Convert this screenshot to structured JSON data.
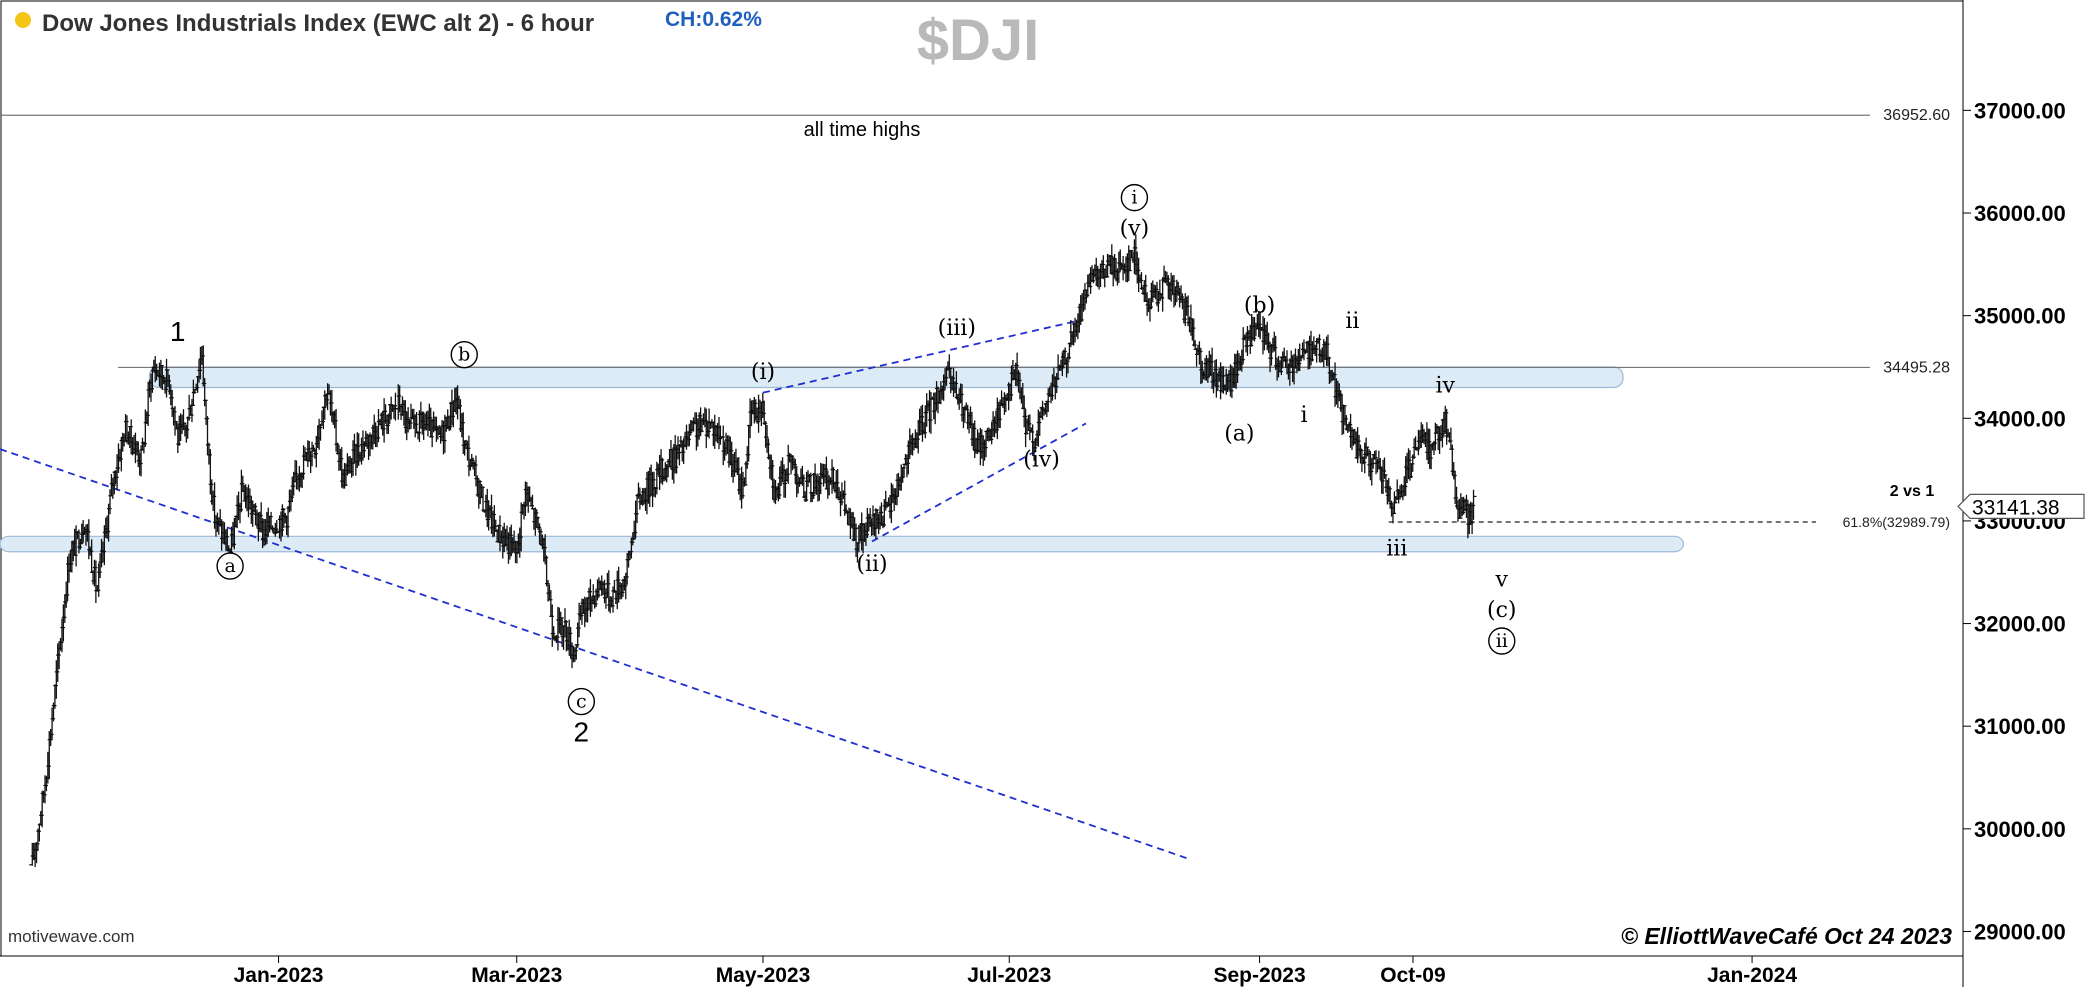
{
  "header": {
    "title": "Dow Jones Industrials Index (EWC alt 2) - 6 hour",
    "change": "CH:0.62%",
    "symbol": "$DJI",
    "dot_color": "#f5c518",
    "change_color": "#1f5fbf"
  },
  "footer": {
    "source": "motivewave.com",
    "copyright": "© ElliottWaveCafé Oct 24 2023"
  },
  "chart_data": {
    "type": "ohlc",
    "x_axis_labels": [
      "Jan-2023",
      "Mar-2023",
      "May-2023",
      "Jul-2023",
      "Sep-2023",
      "Oct-09",
      "Jan-2024"
    ],
    "y_ticks": [
      29000,
      30000,
      31000,
      32000,
      33000,
      34000,
      35000,
      36000,
      37000
    ],
    "y_tick_labels": [
      "29000.00",
      "30000.00",
      "31000.00",
      "32000.00",
      "33000.00",
      "34000.00",
      "35000.00",
      "36000.00",
      "37000.00"
    ],
    "ylim": [
      28800,
      37900
    ],
    "last_price": 33141.38,
    "last_price_label": "33141.38",
    "price_path": [
      [
        "2022-11-01",
        29650
      ],
      [
        "2022-11-04",
        30400
      ],
      [
        "2022-11-07",
        31500
      ],
      [
        "2022-11-10",
        32600
      ],
      [
        "2022-11-14",
        33000
      ],
      [
        "2022-11-17",
        32300
      ],
      [
        "2022-11-21",
        33400
      ],
      [
        "2022-11-24",
        33900
      ],
      [
        "2022-11-28",
        33600
      ],
      [
        "2022-11-30",
        34300
      ],
      [
        "2022-12-01",
        34500
      ],
      [
        "2022-12-05",
        34350
      ],
      [
        "2022-12-07",
        33800
      ],
      [
        "2022-12-09",
        33900
      ],
      [
        "2022-12-13",
        34650
      ],
      [
        "2022-12-14",
        33950
      ],
      [
        "2022-12-16",
        33050
      ],
      [
        "2022-12-20",
        32700
      ],
      [
        "2022-12-23",
        33300
      ],
      [
        "2022-12-28",
        32900
      ],
      [
        "2023-01-03",
        33050
      ],
      [
        "2023-01-06",
        33500
      ],
      [
        "2023-01-10",
        33750
      ],
      [
        "2023-01-13",
        34300
      ],
      [
        "2023-01-17",
        33400
      ],
      [
        "2023-01-20",
        33650
      ],
      [
        "2023-01-25",
        33900
      ],
      [
        "2023-01-31",
        34150
      ],
      [
        "2023-02-02",
        33900
      ],
      [
        "2023-02-06",
        33950
      ],
      [
        "2023-02-10",
        33800
      ],
      [
        "2023-02-14",
        34200
      ],
      [
        "2023-02-16",
        33750
      ],
      [
        "2023-02-21",
        33150
      ],
      [
        "2023-02-24",
        32900
      ],
      [
        "2023-03-01",
        32700
      ],
      [
        "2023-03-03",
        33300
      ],
      [
        "2023-03-07",
        32850
      ],
      [
        "2023-03-10",
        31950
      ],
      [
        "2023-03-13",
        31950
      ],
      [
        "2023-03-15",
        31700
      ],
      [
        "2023-03-17",
        32100
      ],
      [
        "2023-03-22",
        32400
      ],
      [
        "2023-03-24",
        32250
      ],
      [
        "2023-03-28",
        32450
      ],
      [
        "2023-03-31",
        33200
      ],
      [
        "2023-04-06",
        33500
      ],
      [
        "2023-04-11",
        33700
      ],
      [
        "2023-04-14",
        33900
      ],
      [
        "2023-04-18",
        33950
      ],
      [
        "2023-04-21",
        33800
      ],
      [
        "2023-04-26",
        33300
      ],
      [
        "2023-04-28",
        34050
      ],
      [
        "2023-05-01",
        34100
      ],
      [
        "2023-05-04",
        33250
      ],
      [
        "2023-05-08",
        33600
      ],
      [
        "2023-05-11",
        33300
      ],
      [
        "2023-05-15",
        33400
      ],
      [
        "2023-05-19",
        33400
      ],
      [
        "2023-05-24",
        32800
      ],
      [
        "2023-05-30",
        33050
      ],
      [
        "2023-06-01",
        33100
      ],
      [
        "2023-06-05",
        33550
      ],
      [
        "2023-06-09",
        33900
      ],
      [
        "2023-06-14",
        34300
      ],
      [
        "2023-06-16",
        34400
      ],
      [
        "2023-06-20",
        34050
      ],
      [
        "2023-06-23",
        33700
      ],
      [
        "2023-06-27",
        33900
      ],
      [
        "2023-06-30",
        34250
      ],
      [
        "2023-07-03",
        34450
      ],
      [
        "2023-07-05",
        33900
      ],
      [
        "2023-07-07",
        33800
      ],
      [
        "2023-07-11",
        34250
      ],
      [
        "2023-07-14",
        34500
      ],
      [
        "2023-07-18",
        34950
      ],
      [
        "2023-07-20",
        35250
      ],
      [
        "2023-07-26",
        35500
      ],
      [
        "2023-07-28",
        35450
      ],
      [
        "2023-08-01",
        35600
      ],
      [
        "2023-08-04",
        35100
      ],
      [
        "2023-08-08",
        35300
      ],
      [
        "2023-08-11",
        35250
      ],
      [
        "2023-08-15",
        34900
      ],
      [
        "2023-08-18",
        34500
      ],
      [
        "2023-08-23",
        34350
      ],
      [
        "2023-08-25",
        34350
      ],
      [
        "2023-08-29",
        34800
      ],
      [
        "2023-09-01",
        34850
      ],
      [
        "2023-09-05",
        34600
      ],
      [
        "2023-09-08",
        34500
      ],
      [
        "2023-09-12",
        34650
      ],
      [
        "2023-09-15",
        34700
      ],
      [
        "2023-09-18",
        34600
      ],
      [
        "2023-09-21",
        34100
      ],
      [
        "2023-09-25",
        33700
      ],
      [
        "2023-09-28",
        33600
      ],
      [
        "2023-10-02",
        33400
      ],
      [
        "2023-10-04",
        33050
      ],
      [
        "2023-10-06",
        33300
      ],
      [
        "2023-10-09",
        33600
      ],
      [
        "2023-10-11",
        33800
      ],
      [
        "2023-10-13",
        33700
      ],
      [
        "2023-10-17",
        34000
      ],
      [
        "2023-10-19",
        33450
      ],
      [
        "2023-10-20",
        33150
      ],
      [
        "2023-10-23",
        33050
      ],
      [
        "2023-10-24",
        33141
      ]
    ],
    "reference_levels": [
      {
        "value": 36952.6,
        "label": "36952.60",
        "note": "all time highs"
      },
      {
        "value": 34495.28,
        "label": "34495.28"
      },
      {
        "value": 32989.79,
        "label": "61.8%(32989.79)",
        "style": "dashed",
        "start": "2023-10-03"
      }
    ],
    "zones": [
      {
        "start": "2022-11-30",
        "end": "2023-11-30",
        "low": 34300,
        "high": 34500
      },
      {
        "start": "2022-10-24",
        "end": "2023-12-15",
        "low": 32700,
        "high": 32850
      }
    ],
    "trendlines": [
      {
        "from": [
          "2022-10-24",
          33700
        ],
        "to": [
          "2023-08-15",
          29700
        ]
      },
      {
        "from": [
          "2023-05-01",
          34250
        ],
        "to": [
          "2023-07-18",
          34950
        ]
      },
      {
        "from": [
          "2023-05-28",
          32800
        ],
        "to": [
          "2023-07-20",
          33950
        ]
      }
    ],
    "wave_labels": [
      {
        "text": "1",
        "date": "2022-12-07",
        "y": 34850,
        "style": "plain"
      },
      {
        "text": "2",
        "date": "2023-03-17",
        "y": 30950,
        "style": "plain"
      },
      {
        "text": "a",
        "date": "2022-12-20",
        "y": 32560,
        "style": "circled"
      },
      {
        "text": "b",
        "date": "2023-02-16",
        "y": 34620,
        "style": "circled"
      },
      {
        "text": "c",
        "date": "2023-03-17",
        "y": 31240,
        "style": "circled"
      },
      {
        "text": "(i)",
        "date": "2023-05-01",
        "y": 34450,
        "style": "serif"
      },
      {
        "text": "(ii)",
        "date": "2023-05-28",
        "y": 32580,
        "style": "serif"
      },
      {
        "text": "(iii)",
        "date": "2023-06-18",
        "y": 34880,
        "style": "serif"
      },
      {
        "text": "(iv)",
        "date": "2023-07-09",
        "y": 33600,
        "style": "serif"
      },
      {
        "text": "(v)",
        "date": "2023-08-01",
        "y": 35850,
        "style": "serif"
      },
      {
        "text": "i",
        "date": "2023-08-01",
        "y": 36150,
        "style": "circled"
      },
      {
        "text": "(a)",
        "date": "2023-08-27",
        "y": 33850,
        "style": "serif"
      },
      {
        "text": "(b)",
        "date": "2023-09-01",
        "y": 35100,
        "style": "serif"
      },
      {
        "text": "i",
        "date": "2023-09-12",
        "y": 34030,
        "style": "serif"
      },
      {
        "text": "ii",
        "date": "2023-09-24",
        "y": 34950,
        "style": "serif"
      },
      {
        "text": "iii",
        "date": "2023-10-05",
        "y": 32730,
        "style": "serif"
      },
      {
        "text": "iv",
        "date": "2023-10-17",
        "y": 34320,
        "style": "serif"
      },
      {
        "text": "v",
        "date": "2023-10-31",
        "y": 32430,
        "style": "serif"
      },
      {
        "text": "(c)",
        "date": "2023-10-31",
        "y": 32130,
        "style": "serif"
      },
      {
        "text": "ii",
        "date": "2023-10-31",
        "y": 31830,
        "style": "circled"
      }
    ],
    "annotations": [
      {
        "text": "2 vs 1",
        "date": "2023-11-20",
        "y": 33300
      }
    ]
  }
}
